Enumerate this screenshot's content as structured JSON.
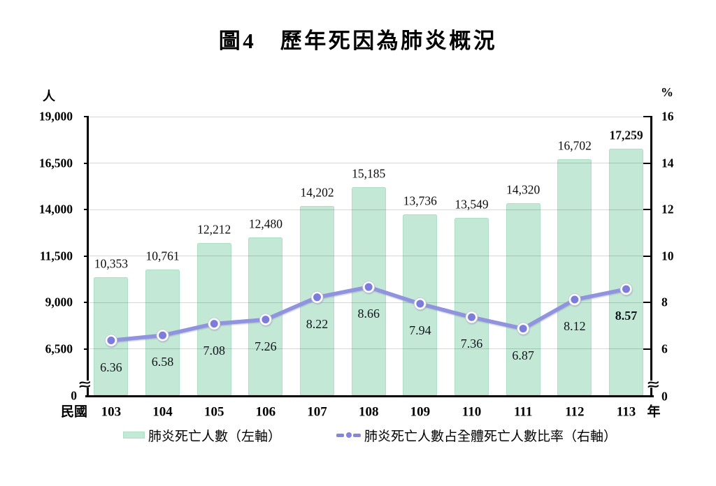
{
  "title": "圖4　歷年死因為肺炎概況",
  "axes": {
    "left": {
      "unit": "人",
      "tick_labels": [
        "19,000",
        "16,500",
        "14,000",
        "11,500",
        "9,000",
        "6,500",
        "0"
      ]
    },
    "right": {
      "unit": "%",
      "tick_labels": [
        "16",
        "14",
        "12",
        "10",
        "8",
        "6",
        "0"
      ]
    },
    "x": {
      "prefix": "民國",
      "suffix": "年"
    }
  },
  "legend": {
    "items": [
      {
        "label": "肺炎死亡人數（左軸）",
        "symbol": "bar-swatch"
      },
      {
        "label": "肺炎死亡人數占全體死亡人數比率（右軸）",
        "symbol": "line-marker"
      }
    ]
  },
  "colors": {
    "bar_fill": "#c3e9d6",
    "bar_border": "#aedfc9",
    "line": "#9093de",
    "marker_fill": "#7c7ddb",
    "marker_ring": "#ffffff",
    "gridline": "#d9d9d9",
    "axis": "#000000",
    "text": "#000000"
  },
  "chart_data": {
    "type": "bar",
    "subtype": "combo-bar-line",
    "title": "圖4　歷年死因為肺炎概況",
    "categories": [
      "103",
      "104",
      "105",
      "106",
      "107",
      "108",
      "109",
      "110",
      "111",
      "112",
      "113"
    ],
    "x_prefix": "民國",
    "x_suffix": "年",
    "series": [
      {
        "name": "肺炎死亡人數（左軸）",
        "type": "bar",
        "axis": "left",
        "values": [
          10353,
          10761,
          12212,
          12480,
          14202,
          15185,
          13736,
          13549,
          14320,
          16702,
          17259
        ],
        "labels": [
          "10,353",
          "10,761",
          "12,212",
          "12,480",
          "14,202",
          "15,185",
          "13,736",
          "13,549",
          "14,320",
          "16,702",
          "17,259"
        ]
      },
      {
        "name": "肺炎死亡人數占全體死亡人數比率（右軸）",
        "type": "line",
        "axis": "right",
        "values": [
          6.36,
          6.58,
          7.08,
          7.26,
          8.22,
          8.66,
          7.94,
          7.36,
          6.87,
          8.12,
          8.57
        ],
        "labels": [
          "6.36",
          "6.58",
          "7.08",
          "7.26",
          "8.22",
          "8.66",
          "7.94",
          "7.36",
          "6.87",
          "8.12",
          "8.57"
        ]
      }
    ],
    "left_axis": {
      "label": "人",
      "tick_values": [
        19000,
        16500,
        14000,
        11500,
        9000,
        6500,
        0
      ],
      "axis_break": true
    },
    "right_axis": {
      "label": "%",
      "tick_values": [
        16,
        14,
        12,
        10,
        8,
        6,
        0
      ],
      "axis_break": true
    },
    "grid": true,
    "legend_position": "bottom",
    "emphasis_last_point": true
  }
}
